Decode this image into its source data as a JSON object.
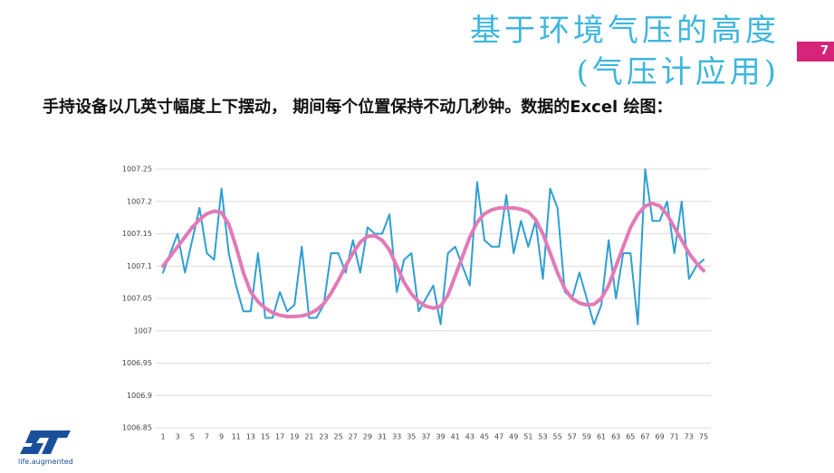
{
  "slide": {
    "title_line1": "基于环境气压的高度",
    "title_line2": "(气压计应用)",
    "page_number": "7",
    "body": "手持设备以几英寸幅度上下摆动， 期间每个位置保持不动几秒钟。数据的Excel 绘图：",
    "logo_text": "life.augmented"
  },
  "chart_data": {
    "type": "line",
    "categories": [
      1,
      null,
      3,
      null,
      5,
      null,
      7,
      null,
      9,
      null,
      11,
      null,
      13,
      null,
      15,
      null,
      17,
      null,
      19,
      null,
      21,
      null,
      23,
      null,
      25,
      null,
      27,
      null,
      29,
      null,
      31,
      null,
      33,
      null,
      35,
      null,
      37,
      null,
      39,
      null,
      41,
      null,
      43,
      null,
      45,
      null,
      47,
      null,
      49,
      null,
      51,
      null,
      53,
      null,
      55,
      null,
      57,
      null,
      59,
      null,
      61,
      null,
      63,
      null,
      65,
      null,
      67,
      null,
      69,
      null,
      71,
      null,
      73,
      null,
      75
    ],
    "series": [
      {
        "color": "#2f9fd1",
        "values": [
          1007.09,
          1007.12,
          1007.15,
          1007.09,
          1007.14,
          1007.19,
          1007.12,
          1007.11,
          1007.22,
          1007.12,
          1007.07,
          1007.03,
          1007.03,
          1007.12,
          1007.02,
          1007.02,
          1007.06,
          1007.03,
          1007.04,
          1007.13,
          1007.02,
          1007.02,
          1007.04,
          1007.12,
          1007.12,
          1007.09,
          1007.14,
          1007.09,
          1007.16,
          1007.15,
          1007.15,
          1007.18,
          1007.06,
          1007.11,
          1007.12,
          1007.03,
          1007.05,
          1007.07,
          1007.01,
          1007.12,
          1007.13,
          1007.1,
          1007.07,
          1007.23,
          1007.14,
          1007.13,
          1007.13,
          1007.21,
          1007.12,
          1007.17,
          1007.13,
          1007.17,
          1007.08,
          1007.22,
          1007.19,
          1007.06,
          1007.05,
          1007.09,
          1007.05,
          1007.01,
          1007.04,
          1007.14,
          1007.05,
          1007.12,
          1007.12,
          1007.01,
          1007.25,
          1007.17,
          1007.17,
          1007.2,
          1007.12,
          1007.2,
          1007.08,
          1007.1,
          1007.11
        ]
      },
      {
        "color": "#e27ab8",
        "values": [
          1007.1,
          1007.115,
          1007.13,
          1007.145,
          1007.16,
          1007.172,
          1007.181,
          1007.185,
          1007.183,
          1007.165,
          1007.13,
          1007.09,
          1007.06,
          1007.045,
          1007.035,
          1007.028,
          1007.024,
          1007.022,
          1007.022,
          1007.023,
          1007.026,
          1007.032,
          1007.042,
          1007.058,
          1007.078,
          1007.1,
          1007.12,
          1007.137,
          1007.146,
          1007.147,
          1007.14,
          1007.125,
          1007.1,
          1007.075,
          1007.057,
          1007.045,
          1007.038,
          1007.035,
          1007.038,
          1007.055,
          1007.085,
          1007.115,
          1007.145,
          1007.168,
          1007.181,
          1007.187,
          1007.19,
          1007.19,
          1007.19,
          1007.188,
          1007.184,
          1007.172,
          1007.15,
          1007.12,
          1007.09,
          1007.065,
          1007.05,
          1007.043,
          1007.04,
          1007.041,
          1007.05,
          1007.07,
          1007.1,
          1007.13,
          1007.16,
          1007.18,
          1007.193,
          1007.197,
          1007.193,
          1007.18,
          1007.16,
          1007.14,
          1007.12,
          1007.105,
          1007.093
        ]
      }
    ],
    "ylim": [
      1006.85,
      1007.25
    ],
    "yticks": [
      1006.85,
      1006.9,
      1006.95,
      1007,
      1007.05,
      1007.1,
      1007.15,
      1007.2,
      1007.25
    ],
    "grid": true
  }
}
